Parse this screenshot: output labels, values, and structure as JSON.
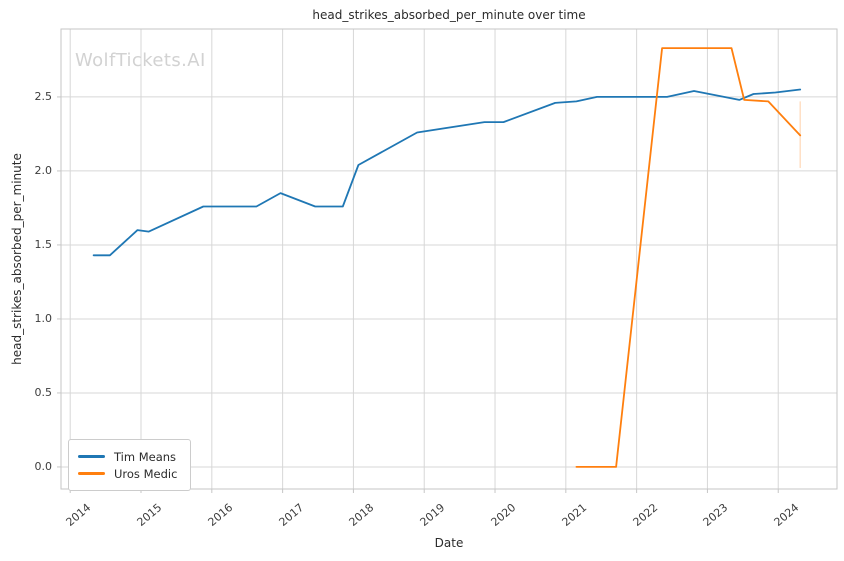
{
  "chart_data": {
    "type": "line",
    "title": "head_strikes_absorbed_per_minute over time",
    "xlabel": "Date",
    "ylabel": "head_strikes_absorbed_per_minute",
    "watermark": "WolfTickets.AI",
    "grid": true,
    "legend_position": "lower left",
    "xlim": [
      2013.87,
      2024.83
    ],
    "ylim": [
      -0.149,
      2.959
    ],
    "xticks": [
      {
        "value": 2014,
        "label": "2014"
      },
      {
        "value": 2015,
        "label": "2015"
      },
      {
        "value": 2016,
        "label": "2016"
      },
      {
        "value": 2017,
        "label": "2017"
      },
      {
        "value": 2018,
        "label": "2018"
      },
      {
        "value": 2019,
        "label": "2019"
      },
      {
        "value": 2020,
        "label": "2020"
      },
      {
        "value": 2021,
        "label": "2021"
      },
      {
        "value": 2022,
        "label": "2022"
      },
      {
        "value": 2023,
        "label": "2023"
      },
      {
        "value": 2024,
        "label": "2024"
      }
    ],
    "yticks": [
      {
        "value": 0.0,
        "label": "0.0"
      },
      {
        "value": 0.5,
        "label": "0.5"
      },
      {
        "value": 1.0,
        "label": "1.0"
      },
      {
        "value": 1.5,
        "label": "1.5"
      },
      {
        "value": 2.0,
        "label": "2.0"
      },
      {
        "value": 2.5,
        "label": "2.5"
      }
    ],
    "style": {
      "grid_color": "#d7d7d7",
      "spine_color": "#c6c6c6",
      "background": "#ffffff",
      "watermark_color": "#d2d2d2"
    },
    "series": [
      {
        "name": "Tim Means",
        "color": "#1f77b4",
        "points": [
          [
            2014.33,
            1.43
          ],
          [
            2014.56,
            1.43
          ],
          [
            2014.95,
            1.6
          ],
          [
            2015.11,
            1.59
          ],
          [
            2015.88,
            1.76
          ],
          [
            2016.63,
            1.76
          ],
          [
            2016.97,
            1.85
          ],
          [
            2017.46,
            1.76
          ],
          [
            2017.85,
            1.76
          ],
          [
            2018.07,
            2.04
          ],
          [
            2018.9,
            2.26
          ],
          [
            2019.85,
            2.33
          ],
          [
            2020.12,
            2.33
          ],
          [
            2020.85,
            2.46
          ],
          [
            2021.15,
            2.47
          ],
          [
            2021.44,
            2.5
          ],
          [
            2022.43,
            2.5
          ],
          [
            2022.81,
            2.54
          ],
          [
            2023.45,
            2.48
          ],
          [
            2023.65,
            2.52
          ],
          [
            2023.96,
            2.53
          ],
          [
            2024.31,
            2.55
          ]
        ]
      },
      {
        "name": "Uros Medic",
        "color": "#ff7f0e",
        "points": [
          [
            2021.15,
            0.0
          ],
          [
            2021.71,
            0.0
          ],
          [
            2022.36,
            2.83
          ],
          [
            2023.34,
            2.83
          ],
          [
            2023.52,
            2.48
          ],
          [
            2023.86,
            2.47
          ],
          [
            2024.31,
            2.24
          ]
        ],
        "errorbar": {
          "x": 2024.31,
          "y_low": 2.02,
          "y_high": 2.47,
          "opacity": 0.3
        }
      }
    ]
  }
}
